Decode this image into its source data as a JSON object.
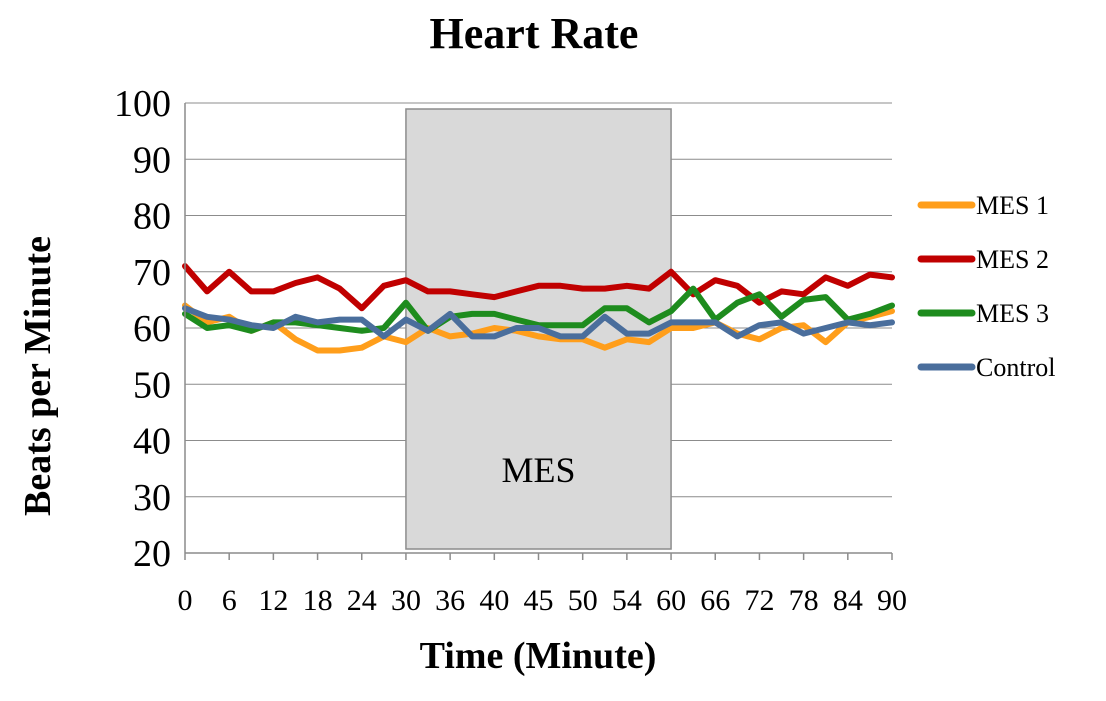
{
  "chart_data": {
    "type": "line",
    "title": "Heart Rate",
    "xlabel": "Time (Minute)",
    "ylabel": "Beats per Minute",
    "ylim": [
      20,
      100
    ],
    "yticks": [
      "20",
      "30",
      "40",
      "50",
      "60",
      "70",
      "80",
      "90",
      "100"
    ],
    "xticks": [
      "0",
      "6",
      "12",
      "18",
      "24",
      "30",
      "36",
      "40",
      "45",
      "50",
      "54",
      "60",
      "66",
      "72",
      "78",
      "84",
      "90"
    ],
    "x": [
      0,
      3,
      6,
      9,
      12,
      15,
      18,
      21,
      24,
      27,
      30,
      33,
      36,
      38,
      40,
      42.5,
      45,
      47.5,
      50,
      52,
      54,
      57,
      60,
      63,
      66,
      69,
      72,
      75,
      78,
      81,
      84,
      87,
      90
    ],
    "grid": true,
    "legend_position": "right",
    "shaded_region": {
      "x_start": 30,
      "x_end": 60,
      "label": "MES",
      "color": "#d9d9d9"
    },
    "series": [
      {
        "name": "MES 1",
        "color": "#ff9e1b",
        "values": [
          64,
          61,
          62,
          59.5,
          61,
          58,
          56,
          56,
          56.5,
          58.5,
          57.5,
          60,
          58.5,
          59,
          60,
          59.5,
          58.5,
          58,
          58,
          56.5,
          58,
          57.5,
          60,
          60,
          61,
          59,
          58,
          60,
          60.5,
          57.5,
          61,
          62,
          63
        ]
      },
      {
        "name": "MES 2",
        "color": "#c00000",
        "values": [
          71,
          66.5,
          70,
          66.5,
          66.5,
          68,
          69,
          67,
          63.5,
          67.5,
          68.5,
          66.5,
          66.5,
          66,
          65.5,
          66.5,
          67.5,
          67.5,
          67,
          67,
          67.5,
          67,
          70,
          66,
          68.5,
          67.5,
          64.5,
          66.5,
          66,
          69,
          67.5,
          69.5,
          69
        ]
      },
      {
        "name": "MES 3",
        "color": "#1e8c1e",
        "values": [
          62.5,
          60,
          60.5,
          59.5,
          61,
          61,
          60.5,
          60,
          59.5,
          60,
          64.5,
          59.5,
          62,
          62.5,
          62.5,
          61.5,
          60.5,
          60.5,
          60.5,
          63.5,
          63.5,
          61,
          63,
          67,
          61.5,
          64.5,
          66,
          62,
          65,
          65.5,
          61.5,
          62.5,
          64
        ]
      },
      {
        "name": "Control",
        "color": "#4a6e9c",
        "values": [
          63.5,
          62,
          61.5,
          60.5,
          60,
          62,
          61,
          61.5,
          61.5,
          58.5,
          61.5,
          59.5,
          62.5,
          58.5,
          58.5,
          60,
          60,
          58.5,
          58.5,
          62,
          59,
          59,
          61,
          61,
          61,
          58.5,
          60.5,
          61,
          59,
          60,
          61,
          60.5,
          61
        ]
      }
    ]
  }
}
